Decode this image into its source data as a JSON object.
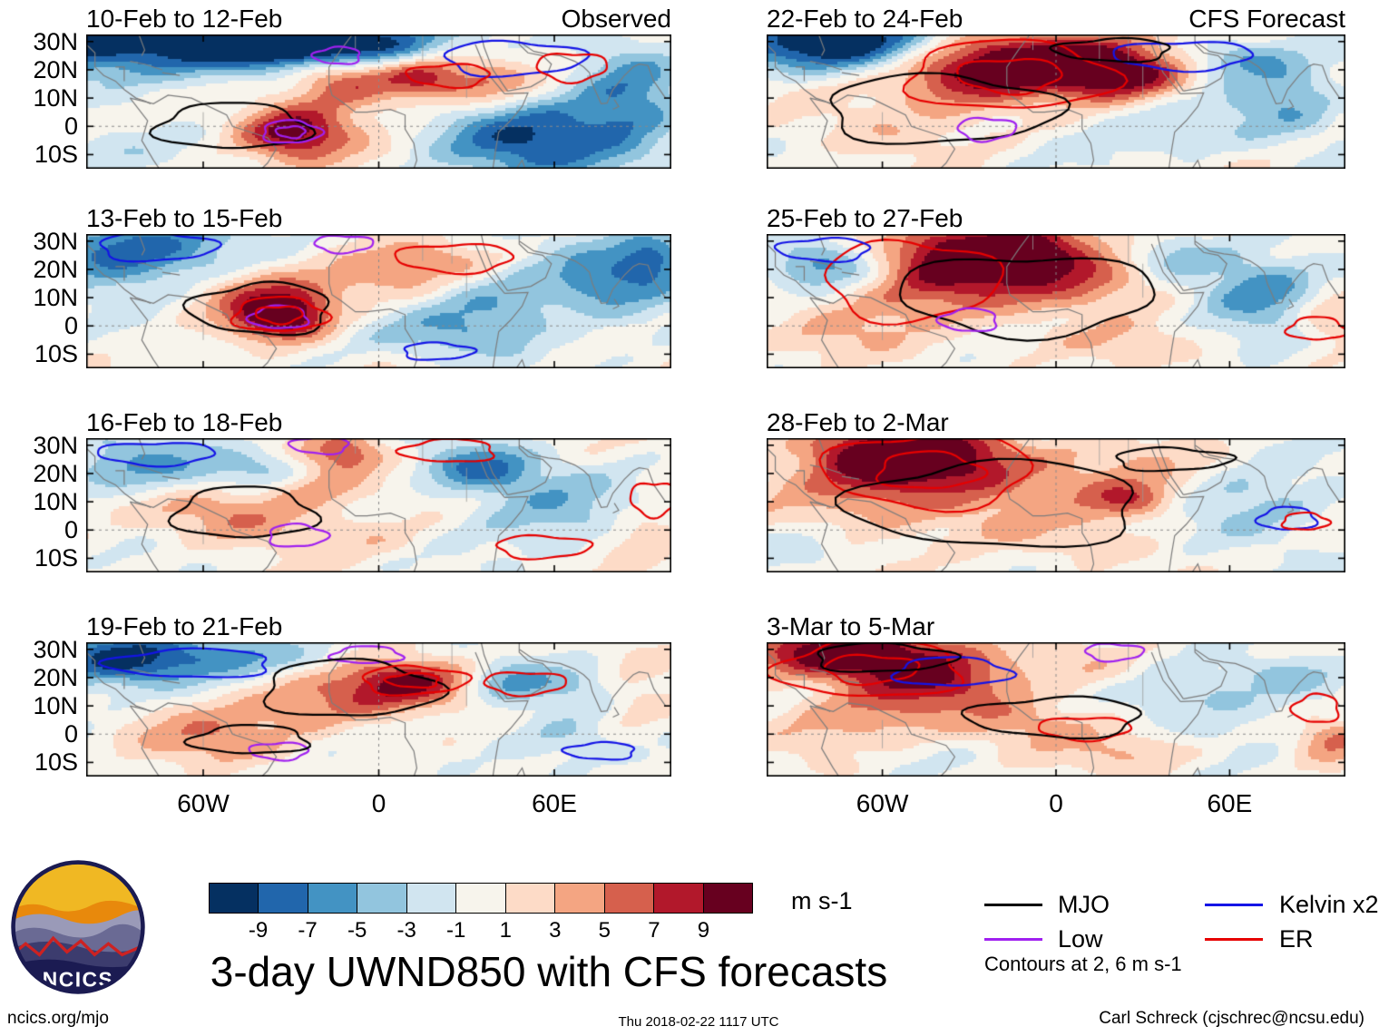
{
  "title": "3-day UWND850 with CFS forecasts",
  "meta": {
    "site": "ncics.org/mjo",
    "timestamp": "Thu 2018-02-22 1117 UTC",
    "credit": "Carl Schreck (cjschrec@ncsu.edu)",
    "logo_text": "NCICS"
  },
  "columns": [
    {
      "header": "Observed"
    },
    {
      "header": "CFS Forecast"
    }
  ],
  "axes": {
    "lat_ticks": [
      "30N",
      "20N",
      "10N",
      "0",
      "10S"
    ],
    "lat_values": [
      30,
      20,
      10,
      0,
      -10
    ],
    "lon_ticks": [
      "60W",
      "0",
      "60E"
    ],
    "lon_values": [
      -60,
      0,
      60
    ]
  },
  "colorbar": {
    "ticks": [
      -9,
      -7,
      -5,
      -3,
      -1,
      1,
      3,
      5,
      7,
      9
    ],
    "colors": [
      "#053061",
      "#2166ac",
      "#4393c3",
      "#92c5de",
      "#d1e5f0",
      "#f7f4ec",
      "#fddbc7",
      "#f4a582",
      "#d6604d",
      "#b2182b",
      "#67001f"
    ],
    "units": "m s-1"
  },
  "legend": {
    "entries": [
      {
        "key": "MJO",
        "label": "MJO",
        "color": "#000000"
      },
      {
        "key": "Low",
        "label": "Low",
        "color": "#a020f0"
      },
      {
        "key": "Kelvin",
        "label": "Kelvin x2",
        "color": "#1414e6"
      },
      {
        "key": "ER",
        "label": "ER",
        "color": "#e60000"
      }
    ],
    "note": "Contours at 2, 6 m s-1"
  },
  "chart_data": {
    "type": "heatmap",
    "variable": "UWND850 anomaly",
    "units": "m s-1",
    "lon_range": [
      -100,
      100
    ],
    "lat_range": [
      -15,
      32.5
    ],
    "fill_levels": [
      -9,
      -7,
      -5,
      -3,
      -1,
      1,
      3,
      5,
      7,
      9
    ],
    "contour_levels": [
      2,
      6
    ],
    "panels": [
      {
        "title": "10-Feb to 12-Feb",
        "column": "Observed",
        "blobs": [
          {
            "lon": -64,
            "lat": 31,
            "sx": 50,
            "sy": 9,
            "a": -12
          },
          {
            "lon": -30,
            "lat": 30,
            "sx": 20,
            "sy": 5,
            "a": -8
          },
          {
            "lon": 0,
            "lat": 28,
            "sx": 16,
            "sy": 5,
            "a": -4
          },
          {
            "lon": -12,
            "lat": 18,
            "sx": 14,
            "sy": 7,
            "a": 9
          },
          {
            "lon": -30,
            "lat": -2,
            "sx": 14,
            "sy": 7,
            "a": 10
          },
          {
            "lon": 14,
            "lat": 18,
            "sx": 10,
            "sy": 6,
            "a": 7
          },
          {
            "lon": 36,
            "lat": 16,
            "sx": 12,
            "sy": 6,
            "a": 5
          },
          {
            "lon": 56,
            "lat": -4,
            "sx": 24,
            "sy": 10,
            "a": -9
          },
          {
            "lon": 86,
            "lat": 11,
            "sx": 12,
            "sy": 14,
            "a": -5
          },
          {
            "lon": -95,
            "lat": -8,
            "sx": 15,
            "sy": 6,
            "a": -3
          }
        ],
        "contours": [
          {
            "w": "MJO",
            "lon": -50,
            "lat": 0,
            "rx": 26,
            "ry": 8
          },
          {
            "w": "Low",
            "lon": -30,
            "lat": -2,
            "rx": 10,
            "ry": 4,
            "d": 1
          },
          {
            "w": "Kelvin",
            "lon": 46,
            "lat": 24,
            "rx": 24,
            "ry": 6
          },
          {
            "w": "ER",
            "lon": 66,
            "lat": 21,
            "rx": 12,
            "ry": 5
          },
          {
            "w": "ER",
            "lon": 24,
            "lat": 18,
            "rx": 14,
            "ry": 4
          },
          {
            "w": "Low",
            "lon": -14,
            "lat": 25,
            "rx": 8,
            "ry": 3
          }
        ]
      },
      {
        "title": "13-Feb to 15-Feb",
        "column": "Observed",
        "blobs": [
          {
            "lon": -86,
            "lat": 27,
            "sx": 24,
            "sy": 9,
            "a": -9
          },
          {
            "lon": -40,
            "lat": 14,
            "sx": 20,
            "sy": 7,
            "a": 4
          },
          {
            "lon": -34,
            "lat": 4,
            "sx": 12,
            "sy": 6,
            "a": 11
          },
          {
            "lon": 4,
            "lat": 18,
            "sx": 16,
            "sy": 6,
            "a": 4
          },
          {
            "lon": 24,
            "lat": 24,
            "sx": 16,
            "sy": 4,
            "a": 3
          },
          {
            "lon": 40,
            "lat": 6,
            "sx": 16,
            "sy": 9,
            "a": -5
          },
          {
            "lon": 76,
            "lat": 16,
            "sx": 16,
            "sy": 9,
            "a": -6
          },
          {
            "lon": 20,
            "lat": -4,
            "sx": 20,
            "sy": 6,
            "a": -3
          },
          {
            "lon": 94,
            "lat": 25,
            "sx": 10,
            "sy": 7,
            "a": -7
          }
        ],
        "contours": [
          {
            "w": "Kelvin",
            "lon": -76,
            "lat": 28,
            "rx": 20,
            "ry": 5
          },
          {
            "w": "Low",
            "lon": -12,
            "lat": 29,
            "rx": 10,
            "ry": 3
          },
          {
            "w": "ER",
            "lon": 26,
            "lat": 24,
            "rx": 20,
            "ry": 5
          },
          {
            "w": "MJO",
            "lon": -40,
            "lat": 6,
            "rx": 24,
            "ry": 9
          },
          {
            "w": "Low",
            "lon": -34,
            "lat": 3,
            "rx": 10,
            "ry": 4
          },
          {
            "w": "ER",
            "lon": -34,
            "lat": 4,
            "rx": 16,
            "ry": 6,
            "d": 1
          },
          {
            "w": "Kelvin",
            "lon": 20,
            "lat": -9,
            "rx": 12,
            "ry": 3
          }
        ]
      },
      {
        "title": "16-Feb to 18-Feb",
        "column": "Observed",
        "blobs": [
          {
            "lon": -80,
            "lat": 23,
            "sx": 20,
            "sy": 7,
            "a": -6
          },
          {
            "lon": -40,
            "lat": 21,
            "sx": 12,
            "sy": 5,
            "a": -4
          },
          {
            "lon": -12,
            "lat": 27,
            "sx": 10,
            "sy": 5,
            "a": 7
          },
          {
            "lon": -50,
            "lat": 6,
            "sx": 20,
            "sy": 7,
            "a": 5
          },
          {
            "lon": -24,
            "lat": 16,
            "sx": 12,
            "sy": 5,
            "a": 5
          },
          {
            "lon": 34,
            "lat": 22,
            "sx": 14,
            "sy": 6,
            "a": -8
          },
          {
            "lon": 60,
            "lat": 6,
            "sx": 20,
            "sy": 10,
            "a": -4
          },
          {
            "lon": 0,
            "lat": -3,
            "sx": 16,
            "sy": 5,
            "a": 2
          },
          {
            "lon": 90,
            "lat": -1,
            "sx": 10,
            "sy": 7,
            "a": 3
          }
        ],
        "contours": [
          {
            "w": "Kelvin",
            "lon": -76,
            "lat": 27,
            "rx": 20,
            "ry": 4
          },
          {
            "w": "Low",
            "lon": -20,
            "lat": 30,
            "rx": 10,
            "ry": 3
          },
          {
            "w": "ER",
            "lon": 24,
            "lat": 28,
            "rx": 16,
            "ry": 4
          },
          {
            "w": "MJO",
            "lon": -46,
            "lat": 6,
            "rx": 24,
            "ry": 9
          },
          {
            "w": "Low",
            "lon": -28,
            "lat": -2,
            "rx": 10,
            "ry": 4
          },
          {
            "w": "ER",
            "lon": 56,
            "lat": -6,
            "rx": 16,
            "ry": 4
          },
          {
            "w": "ER",
            "lon": 94,
            "lat": 11,
            "rx": 8,
            "ry": 6
          }
        ]
      },
      {
        "title": "19-Feb to 21-Feb",
        "column": "Observed",
        "blobs": [
          {
            "lon": -90,
            "lat": 27,
            "sx": 20,
            "sy": 7,
            "a": -10
          },
          {
            "lon": -40,
            "lat": 28,
            "sx": 24,
            "sy": 5,
            "a": -4
          },
          {
            "lon": -60,
            "lat": -1,
            "sx": 20,
            "sy": 7,
            "a": 4
          },
          {
            "lon": -20,
            "lat": 11,
            "sx": 20,
            "sy": 7,
            "a": 5
          },
          {
            "lon": 10,
            "lat": 19,
            "sx": 16,
            "sy": 6,
            "a": 9
          },
          {
            "lon": 44,
            "lat": 18,
            "sx": 10,
            "sy": 5,
            "a": -5
          },
          {
            "lon": 70,
            "lat": 18,
            "sx": 12,
            "sy": 6,
            "a": -4
          },
          {
            "lon": 60,
            "lat": -1,
            "sx": 20,
            "sy": 7,
            "a": -3
          },
          {
            "lon": 86,
            "lat": 9,
            "sx": 10,
            "sy": 10,
            "a": 3
          }
        ],
        "contours": [
          {
            "w": "Kelvin",
            "lon": -64,
            "lat": 25,
            "rx": 28,
            "ry": 5
          },
          {
            "w": "Low",
            "lon": -4,
            "lat": 28,
            "rx": 12,
            "ry": 3
          },
          {
            "w": "MJO",
            "lon": -10,
            "lat": 16,
            "rx": 30,
            "ry": 10
          },
          {
            "w": "ER",
            "lon": 12,
            "lat": 19,
            "rx": 18,
            "ry": 5,
            "d": 1
          },
          {
            "w": "ER",
            "lon": 50,
            "lat": 18,
            "rx": 14,
            "ry": 4
          },
          {
            "w": "Low",
            "lon": -34,
            "lat": -6,
            "rx": 10,
            "ry": 3
          },
          {
            "w": "Kelvin",
            "lon": 76,
            "lat": -6,
            "rx": 12,
            "ry": 3
          },
          {
            "w": "MJO",
            "lon": -44,
            "lat": -2,
            "rx": 20,
            "ry": 5
          }
        ]
      },
      {
        "title": "22-Feb to 24-Feb",
        "column": "CFS Forecast",
        "blobs": [
          {
            "lon": -74,
            "lat": 30,
            "sx": 28,
            "sy": 7,
            "a": -12
          },
          {
            "lon": -34,
            "lat": 18,
            "sx": 20,
            "sy": 9,
            "a": 8
          },
          {
            "lon": 0,
            "lat": 24,
            "sx": 24,
            "sy": 7,
            "a": 12
          },
          {
            "lon": 24,
            "lat": 18,
            "sx": 16,
            "sy": 6,
            "a": 7
          },
          {
            "lon": 60,
            "lat": 25,
            "sx": 14,
            "sy": 5,
            "a": -5
          },
          {
            "lon": 80,
            "lat": 11,
            "sx": 14,
            "sy": 10,
            "a": -5
          },
          {
            "lon": 40,
            "lat": -1,
            "sx": 20,
            "sy": 7,
            "a": -3
          },
          {
            "lon": -60,
            "lat": -1,
            "sx": 20,
            "sy": 7,
            "a": 2
          }
        ],
        "contours": [
          {
            "w": "ER",
            "lon": -16,
            "lat": 18,
            "rx": 36,
            "ry": 12,
            "d": 1
          },
          {
            "w": "MJO",
            "lon": -40,
            "lat": 6,
            "rx": 40,
            "ry": 12
          },
          {
            "w": "Low",
            "lon": -24,
            "lat": -1,
            "rx": 10,
            "ry": 4
          },
          {
            "w": "Kelvin",
            "lon": 44,
            "lat": 25,
            "rx": 24,
            "ry": 5
          },
          {
            "w": "MJO",
            "lon": 20,
            "lat": 27,
            "rx": 20,
            "ry": 4
          }
        ]
      },
      {
        "title": "25-Feb to 27-Feb",
        "column": "CFS Forecast",
        "blobs": [
          {
            "lon": -20,
            "lat": 27,
            "sx": 24,
            "sy": 7,
            "a": 12
          },
          {
            "lon": -40,
            "lat": 14,
            "sx": 24,
            "sy": 10,
            "a": 6
          },
          {
            "lon": 10,
            "lat": 16,
            "sx": 20,
            "sy": 7,
            "a": 5
          },
          {
            "lon": -80,
            "lat": 22,
            "sx": 14,
            "sy": 6,
            "a": -6
          },
          {
            "lon": 70,
            "lat": 14,
            "sx": 16,
            "sy": 9,
            "a": -7
          },
          {
            "lon": 40,
            "lat": 25,
            "sx": 12,
            "sy": 5,
            "a": -4
          },
          {
            "lon": -70,
            "lat": -3,
            "sx": 20,
            "sy": 6,
            "a": 2
          },
          {
            "lon": 20,
            "lat": -6,
            "sx": 20,
            "sy": 5,
            "a": 2
          },
          {
            "lon": 94,
            "lat": 4,
            "sx": 8,
            "sy": 7,
            "a": 4
          }
        ],
        "contours": [
          {
            "w": "ER",
            "lon": -50,
            "lat": 16,
            "rx": 30,
            "ry": 14
          },
          {
            "w": "MJO",
            "lon": -10,
            "lat": 11,
            "rx": 44,
            "ry": 14
          },
          {
            "w": "Kelvin",
            "lon": -80,
            "lat": 27,
            "rx": 16,
            "ry": 4
          },
          {
            "w": "Low",
            "lon": -30,
            "lat": 2,
            "rx": 10,
            "ry": 4
          },
          {
            "w": "ER",
            "lon": 90,
            "lat": -1,
            "rx": 10,
            "ry": 4
          }
        ]
      },
      {
        "title": "28-Feb to 2-Mar",
        "column": "CFS Forecast",
        "blobs": [
          {
            "lon": -50,
            "lat": 28,
            "sx": 24,
            "sy": 7,
            "a": 12
          },
          {
            "lon": -60,
            "lat": 14,
            "sx": 24,
            "sy": 10,
            "a": 6
          },
          {
            "lon": -10,
            "lat": 18,
            "sx": 24,
            "sy": 10,
            "a": 3
          },
          {
            "lon": 30,
            "lat": 23,
            "sx": 20,
            "sy": 6,
            "a": 2
          },
          {
            "lon": 26,
            "lat": 11,
            "sx": 12,
            "sy": 5,
            "a": 7
          },
          {
            "lon": 70,
            "lat": 9,
            "sx": 20,
            "sy": 10,
            "a": -4
          },
          {
            "lon": 0,
            "lat": -3,
            "sx": 24,
            "sy": 6,
            "a": 2
          },
          {
            "lon": -90,
            "lat": -6,
            "sx": 12,
            "sy": 5,
            "a": -3
          }
        ],
        "contours": [
          {
            "w": "ER",
            "lon": -44,
            "lat": 21,
            "rx": 36,
            "ry": 13,
            "d": 1
          },
          {
            "w": "MJO",
            "lon": -20,
            "lat": 9,
            "rx": 50,
            "ry": 15
          },
          {
            "w": "Kelvin",
            "lon": 80,
            "lat": 4,
            "rx": 10,
            "ry": 4
          },
          {
            "w": "ER",
            "lon": 86,
            "lat": 3,
            "rx": 8,
            "ry": 3
          },
          {
            "w": "MJO",
            "lon": 40,
            "lat": 25,
            "rx": 20,
            "ry": 4
          }
        ]
      },
      {
        "title": "3-Mar to 5-Mar",
        "column": "CFS Forecast",
        "blobs": [
          {
            "lon": -70,
            "lat": 29,
            "sx": 26,
            "sy": 7,
            "a": 12
          },
          {
            "lon": -40,
            "lat": 18,
            "sx": 20,
            "sy": 7,
            "a": 6
          },
          {
            "lon": -70,
            "lat": 6,
            "sx": 20,
            "sy": 7,
            "a": 4
          },
          {
            "lon": -10,
            "lat": 4,
            "sx": 20,
            "sy": 6,
            "a": 4
          },
          {
            "lon": 10,
            "lat": 23,
            "sx": 16,
            "sy": 6,
            "a": 3
          },
          {
            "lon": 50,
            "lat": 14,
            "sx": 20,
            "sy": 9,
            "a": -4
          },
          {
            "lon": 80,
            "lat": 21,
            "sx": 12,
            "sy": 5,
            "a": -3
          },
          {
            "lon": 30,
            "lat": -6,
            "sx": 16,
            "sy": 5,
            "a": 3
          },
          {
            "lon": 94,
            "lat": -1,
            "sx": 8,
            "sy": 5,
            "a": 5
          }
        ],
        "contours": [
          {
            "w": "ER",
            "lon": -64,
            "lat": 23,
            "rx": 32,
            "ry": 10,
            "d": 1
          },
          {
            "w": "Kelvin",
            "lon": -36,
            "lat": 22,
            "rx": 20,
            "ry": 5
          },
          {
            "w": "MJO",
            "lon": -60,
            "lat": 27,
            "rx": 24,
            "ry": 5
          },
          {
            "w": "Low",
            "lon": 20,
            "lat": 29,
            "rx": 10,
            "ry": 3
          },
          {
            "w": "ER",
            "lon": 10,
            "lat": 2,
            "rx": 16,
            "ry": 4
          },
          {
            "w": "MJO",
            "lon": 0,
            "lat": 6,
            "rx": 30,
            "ry": 7
          },
          {
            "w": "ER",
            "lon": 90,
            "lat": 9,
            "rx": 8,
            "ry": 5
          }
        ]
      }
    ]
  }
}
